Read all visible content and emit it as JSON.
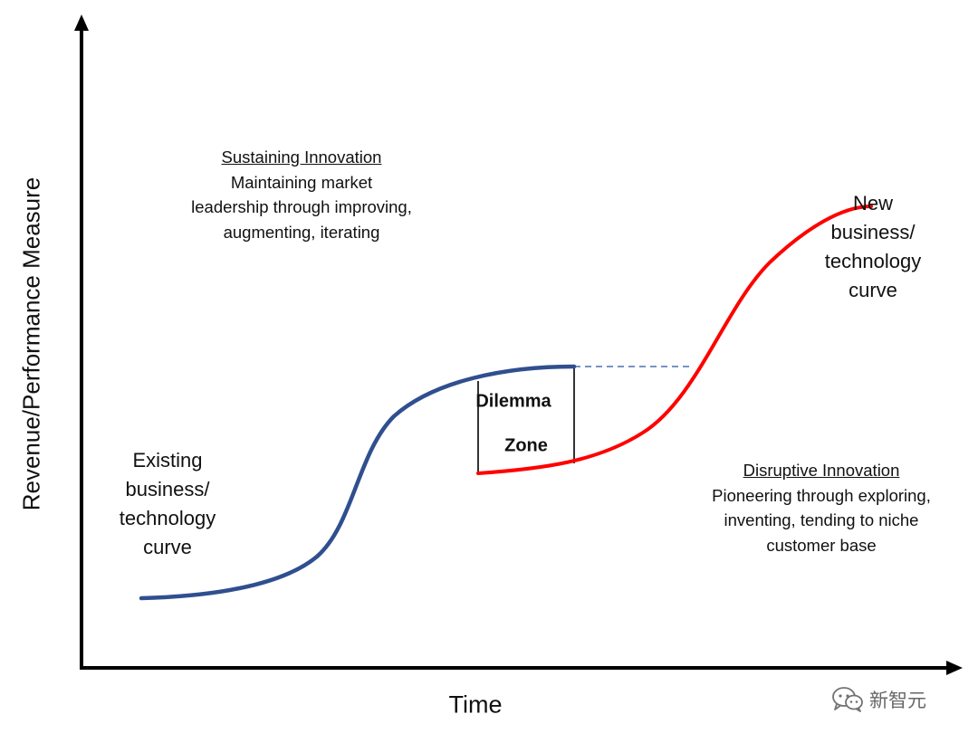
{
  "axes": {
    "y_label": "Revenue/Performance Measure",
    "x_label": "Time"
  },
  "existing_curve": {
    "label_lines": [
      "Existing",
      "business/",
      "technology",
      "curve"
    ],
    "color": "#2f4f8f"
  },
  "new_curve": {
    "label_lines": [
      "New",
      "business/",
      "technology",
      "curve"
    ],
    "color": "#ff0000"
  },
  "sustaining": {
    "heading": "Sustaining Innovation",
    "lines": [
      "Maintaining market",
      "leadership through improving,",
      "augmenting, iterating"
    ]
  },
  "disruptive": {
    "heading": "Disruptive Innovation",
    "lines": [
      "Pioneering through exploring,",
      "inventing, tending to niche",
      "customer base"
    ]
  },
  "dilemma_zone": {
    "line1": "Dilemma",
    "line2": "Zone"
  },
  "watermark": {
    "icon": "wechat-icon",
    "text": "新智元"
  }
}
